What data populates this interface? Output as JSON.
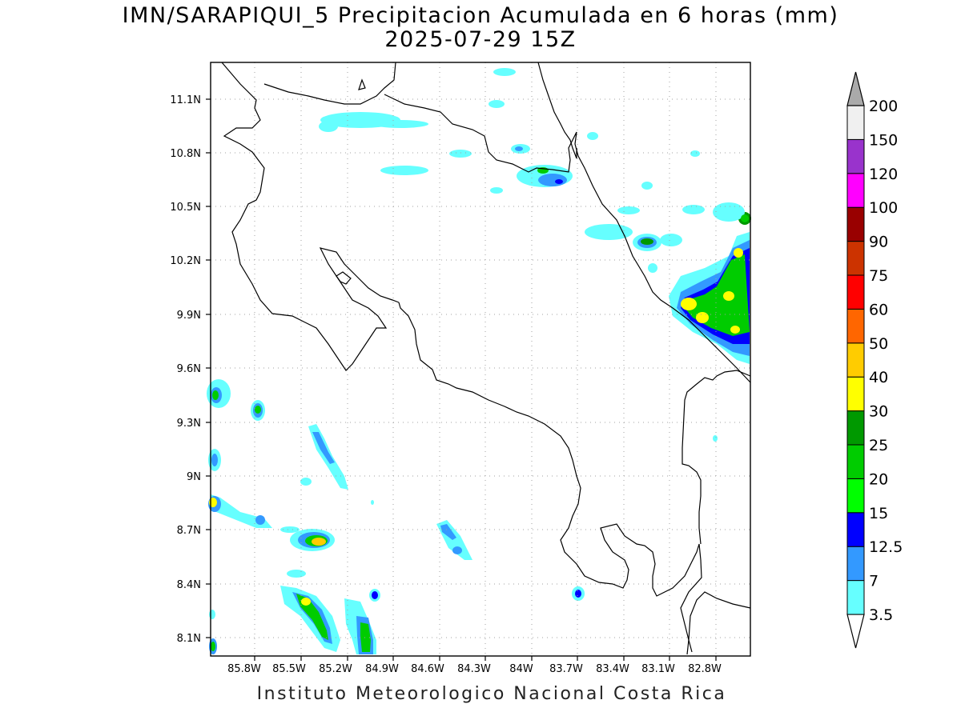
{
  "title": "IMN/SARAPIQUI_5 Precipitacion Acumulada en 6 horas (mm)",
  "subtitle": "2025-07-29 15Z",
  "credit": "Instituto Meteorologico Nacional Costa Rica",
  "lat_labels": [
    "11.1N",
    "10.8N",
    "10.5N",
    "10.2N",
    "9.9N",
    "9.6N",
    "9.3N",
    "9N",
    "8.7N",
    "8.4N",
    "8.1N"
  ],
  "lon_labels": [
    "85.8W",
    "85.5W",
    "85.2W",
    "84.9W",
    "84.6W",
    "84.3W",
    "84W",
    "83.7W",
    "83.4W",
    "83.1W",
    "82.8W"
  ],
  "colorbar": {
    "labels": [
      "3.5",
      "7",
      "12.5",
      "15",
      "20",
      "25",
      "30",
      "40",
      "50",
      "60",
      "75",
      "90",
      "100",
      "120",
      "150",
      "200"
    ],
    "colors": [
      "#66ffff",
      "#3399ff",
      "#0000ff",
      "#00ff00",
      "#00cc00",
      "#009900",
      "#ffff00",
      "#ffcc00",
      "#ff6600",
      "#ff0000",
      "#cc3300",
      "#990000",
      "#ff00ff",
      "#9933cc",
      "#f0f0f0",
      "#aaaaaa"
    ]
  }
}
